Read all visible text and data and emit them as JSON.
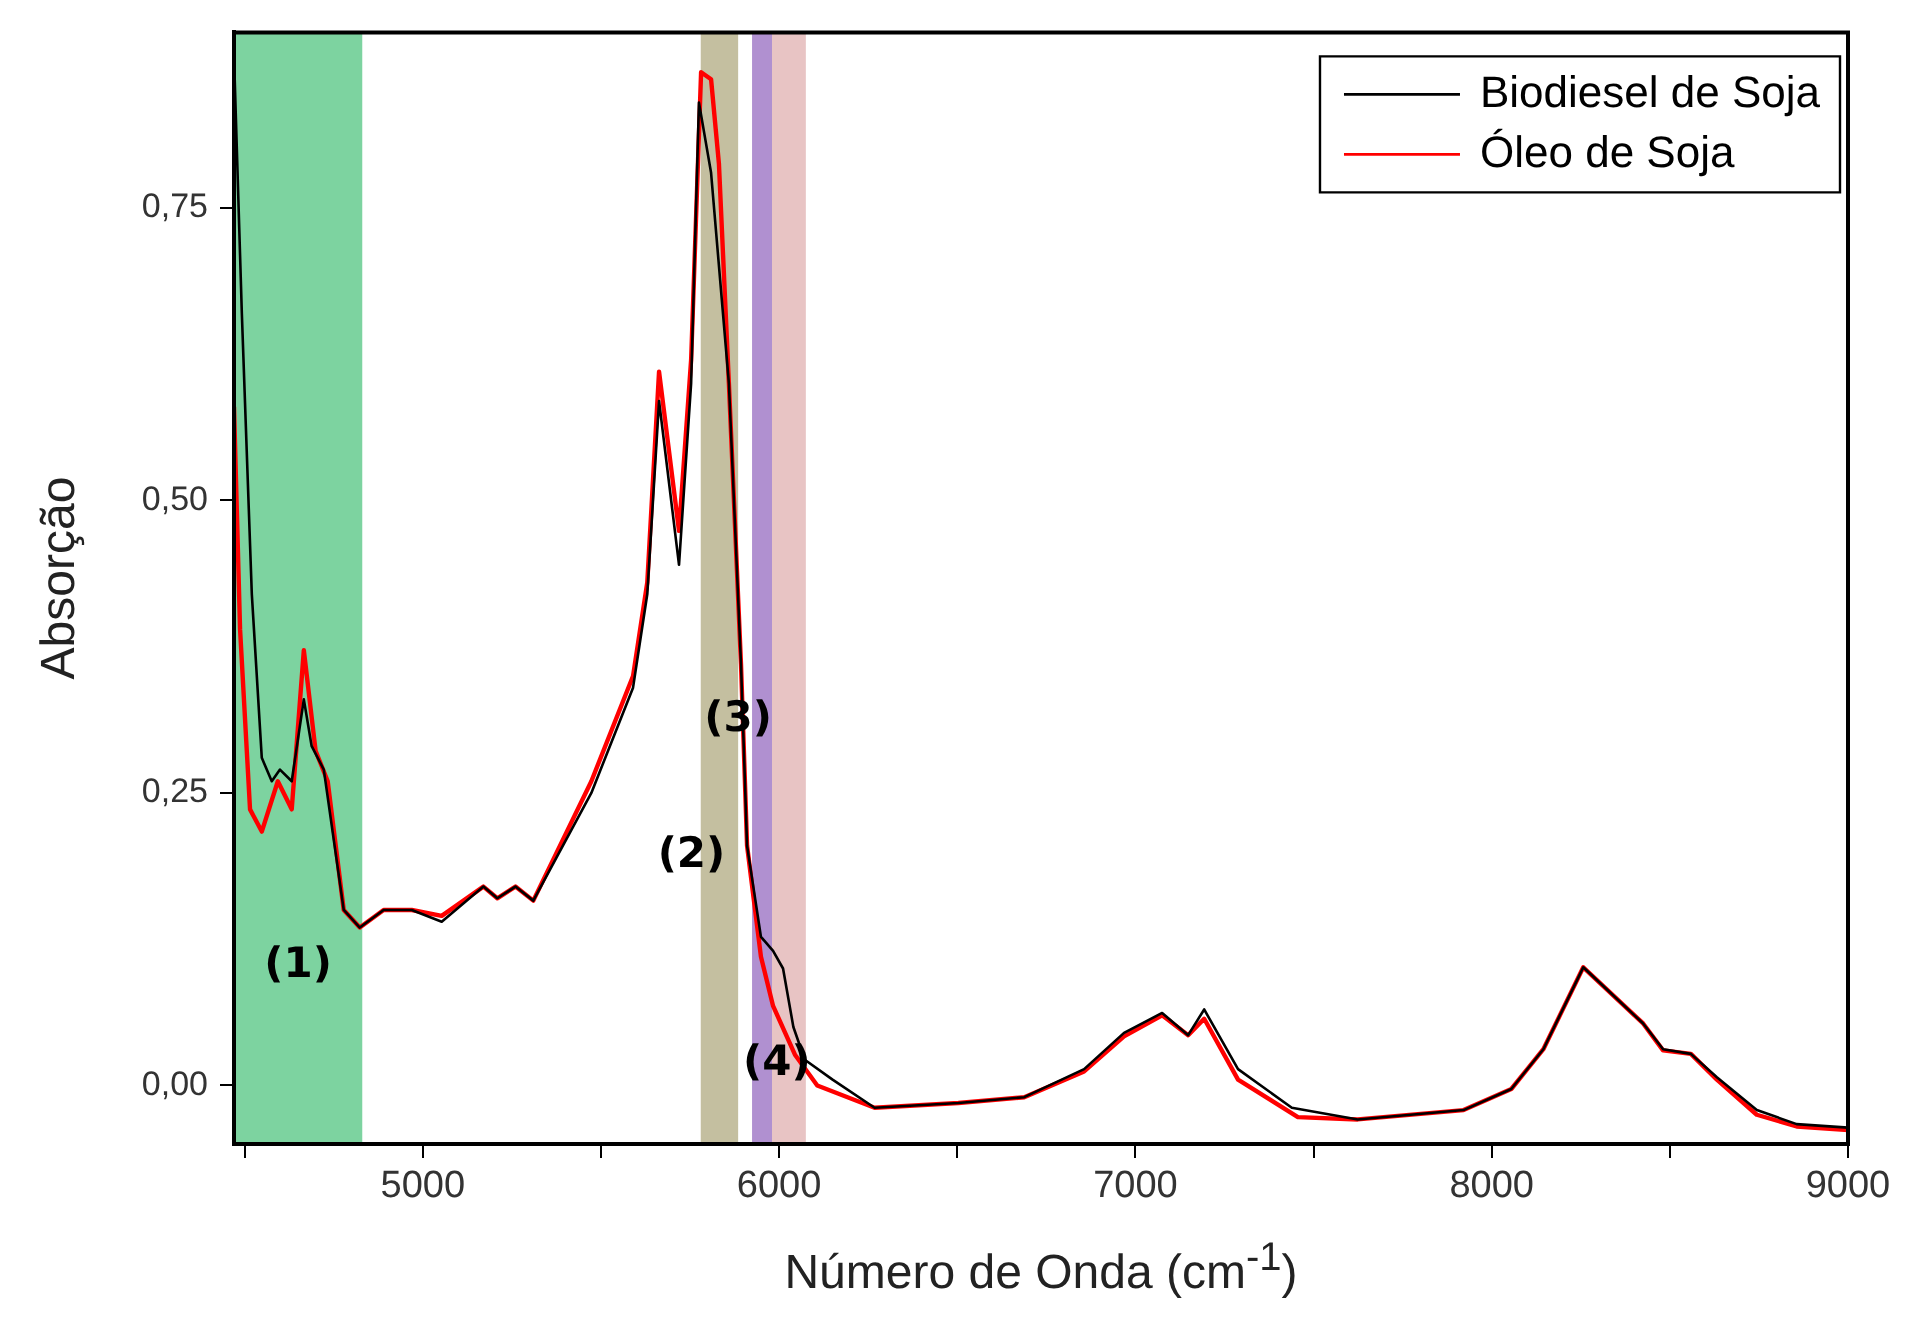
{
  "chart_data": {
    "type": "line",
    "xlabel": "Número de Onda (cm$^{-1}$)",
    "ylabel": "Absorção",
    "xlim": [
      4470,
      9000
    ],
    "ylim": [
      -0.05,
      0.9
    ],
    "xticks": [
      {
        "value": 4500,
        "label": null
      },
      5000,
      {
        "value": 5500,
        "label": null
      },
      6000,
      {
        "value": 6500,
        "label": null
      },
      7000,
      {
        "value": 7500,
        "label": null
      },
      8000,
      {
        "value": 8500,
        "label": null
      },
      9000
    ],
    "yticks": [
      {
        "value": 0,
        "label": "0,00"
      },
      {
        "value": 0.25,
        "label": "0,25"
      },
      {
        "value": 0.5,
        "label": "0,50"
      },
      {
        "value": 0.75,
        "label": "0,75"
      }
    ],
    "grid": false,
    "legend": "top right",
    "marker": "none",
    "line_style": "solid",
    "bands": [
      {
        "axis": "x",
        "from": 4470,
        "to": 4830,
        "color": "#7dd3a0",
        "label": "(1)"
      },
      {
        "axis": "x",
        "from": 5780,
        "to": 5885,
        "color": "#c4bfa0",
        "label": "(2)"
      },
      {
        "axis": "x",
        "from": 5924,
        "to": 5980,
        "color": "#b090d0",
        "label": "(3)"
      },
      {
        "axis": "x",
        "from": 5980,
        "to": 6075,
        "color": "#e8c4c4",
        "label": "(4)"
      }
    ],
    "series": [
      {
        "name": "Biodiesel de Soja",
        "color": "#000000",
        "x": [
          4470,
          4492,
          4520,
          4548,
          4576,
          4599,
          4632,
          4666,
          4688,
          4722,
          4778,
          4823,
          4890,
          4969,
          5053,
          5170,
          5209,
          5260,
          5310,
          5473,
          5590,
          5630,
          5663,
          5719,
          5753,
          5775,
          5809,
          5859,
          5893,
          5910,
          5949,
          5983,
          6011,
          6040,
          6072,
          6150,
          6268,
          6503,
          6688,
          6856,
          6968,
          7075,
          7148,
          7193,
          7288,
          7439,
          7624,
          7921,
          8055,
          8145,
          8257,
          8425,
          8481,
          8559,
          8632,
          8744,
          8856,
          9000
        ],
        "values": [
          0.88,
          0.66,
          0.42,
          0.28,
          0.26,
          0.27,
          0.26,
          0.33,
          0.29,
          0.27,
          0.15,
          0.135,
          0.15,
          0.15,
          0.14,
          0.17,
          0.16,
          0.17,
          0.158,
          0.25,
          0.34,
          0.42,
          0.585,
          0.445,
          0.6,
          0.84,
          0.78,
          0.6,
          0.36,
          0.205,
          0.127,
          0.115,
          0.1,
          0.05,
          0.022,
          0.005,
          -0.019,
          -0.015,
          -0.01,
          0.014,
          0.045,
          0.062,
          0.043,
          0.065,
          0.014,
          -0.019,
          -0.029,
          -0.021,
          -0.003,
          0.031,
          0.101,
          0.053,
          0.031,
          0.027,
          0.007,
          -0.021,
          -0.033,
          -0.036
        ]
      },
      {
        "name": "Óleo de Soja",
        "color": "#ff0000",
        "x": [
          4470,
          4487,
          4515,
          4548,
          4593,
          4632,
          4666,
          4699,
          4733,
          4778,
          4823,
          4890,
          4969,
          5053,
          5170,
          5209,
          5260,
          5310,
          5473,
          5590,
          5630,
          5663,
          5719,
          5753,
          5781,
          5809,
          5831,
          5859,
          5893,
          5910,
          5949,
          5983,
          6045,
          6107,
          6268,
          6503,
          6688,
          6856,
          6968,
          7075,
          7148,
          7193,
          7288,
          7456,
          7624,
          7921,
          8055,
          8145,
          8257,
          8425,
          8481,
          8559,
          8632,
          8744,
          8856,
          9000
        ],
        "values": [
          0.58,
          0.39,
          0.236,
          0.217,
          0.26,
          0.236,
          0.372,
          0.286,
          0.26,
          0.15,
          0.135,
          0.15,
          0.15,
          0.145,
          0.17,
          0.16,
          0.17,
          0.158,
          0.26,
          0.35,
          0.43,
          0.61,
          0.474,
          0.62,
          0.866,
          0.86,
          0.788,
          0.6,
          0.36,
          0.205,
          0.11,
          0.068,
          0.026,
          0,
          -0.019,
          -0.015,
          -0.01,
          0.012,
          0.042,
          0.06,
          0.043,
          0.057,
          0.005,
          -0.027,
          -0.029,
          -0.021,
          -0.003,
          0.031,
          0.101,
          0.053,
          0.03,
          0.027,
          0.005,
          -0.025,
          -0.035,
          -0.038
        ]
      }
    ]
  }
}
